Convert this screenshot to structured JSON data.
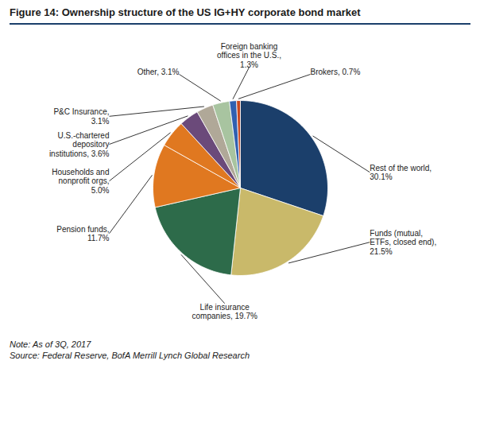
{
  "chart_data": {
    "type": "pie",
    "title": "Figure 14: Ownership structure of the US IG+HY corporate bond market",
    "categories": [
      "Rest of the world,\n30.1%",
      "Funds (mutual,\nETFs, closed end),\n21.5%",
      "Life insurance\ncompanies, 19.7%",
      "Pension funds,\n11.7%",
      "Households and\nnonprofit orgs,\n5.0%",
      "U.S.-chartered\ndepository\ninstitutions, 3.6%",
      "P&C Insurance,\n3.1%",
      "Other, 3.1%",
      "Foreign banking\noffices in the U.S.,\n1.3%",
      "Brokers, 0.7%"
    ],
    "values": [
      30.1,
      21.5,
      19.7,
      11.7,
      5.0,
      3.6,
      3.1,
      3.1,
      1.3,
      0.7
    ],
    "colors": [
      "#1b3f6b",
      "#c9b96a",
      "#2d6b4a",
      "#e07820",
      "#e07820",
      "#6b4a7a",
      "#b0a898",
      "#a8c4a0",
      "#3060b0",
      "#c84820"
    ],
    "annotations": [
      "Note: As of 3Q, 2017",
      "Source: Federal Reserve, BofA Merrill Lynch Global Research"
    ]
  }
}
